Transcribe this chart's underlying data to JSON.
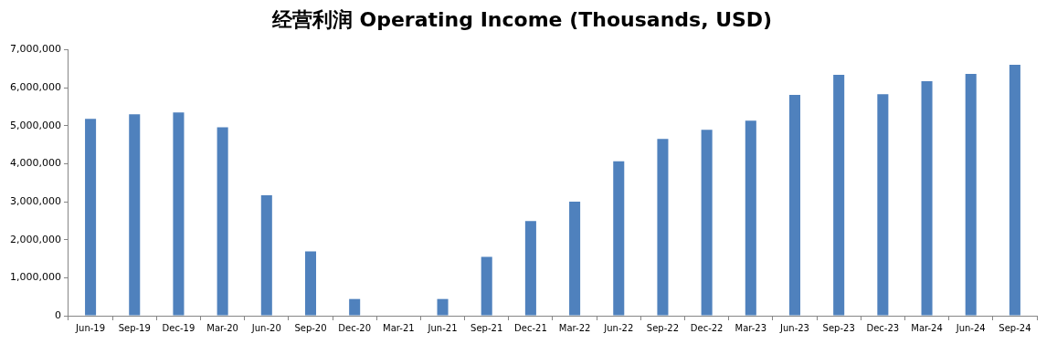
{
  "chart_data": {
    "type": "bar",
    "title": "经营利润 Operating Income (Thousands, USD)",
    "categories": [
      "Jun-19",
      "Sep-19",
      "Dec-19",
      "Mar-20",
      "Jun-20",
      "Sep-20",
      "Dec-20",
      "Mar-21",
      "Jun-21",
      "Sep-21",
      "Dec-21",
      "Mar-22",
      "Jun-22",
      "Sep-22",
      "Dec-22",
      "Mar-23",
      "Jun-23",
      "Sep-23",
      "Dec-23",
      "Mar-24",
      "Jun-24",
      "Sep-24"
    ],
    "values": [
      5180000,
      5300000,
      5350000,
      4960000,
      3170000,
      1690000,
      440000,
      null,
      440000,
      1550000,
      2490000,
      3000000,
      4060000,
      4650000,
      4890000,
      5130000,
      5810000,
      6340000,
      5830000,
      6170000,
      6360000,
      6600000
    ],
    "color": "#4f81bd",
    "ylim": [
      0,
      7000000
    ],
    "yticks": [
      0,
      {
        "value": 1000000,
        "label": "1,000,000"
      },
      {
        "value": 2000000,
        "label": "2,000,000"
      },
      {
        "value": 3000000,
        "label": "3,000,000"
      },
      {
        "value": 4000000,
        "label": "4,000,000"
      },
      {
        "value": 5000000,
        "label": "5,000,000"
      },
      {
        "value": 6000000,
        "label": "6,000,000"
      },
      {
        "value": 7000000,
        "label": "7,000,000"
      }
    ],
    "grid": false,
    "legend": false
  }
}
